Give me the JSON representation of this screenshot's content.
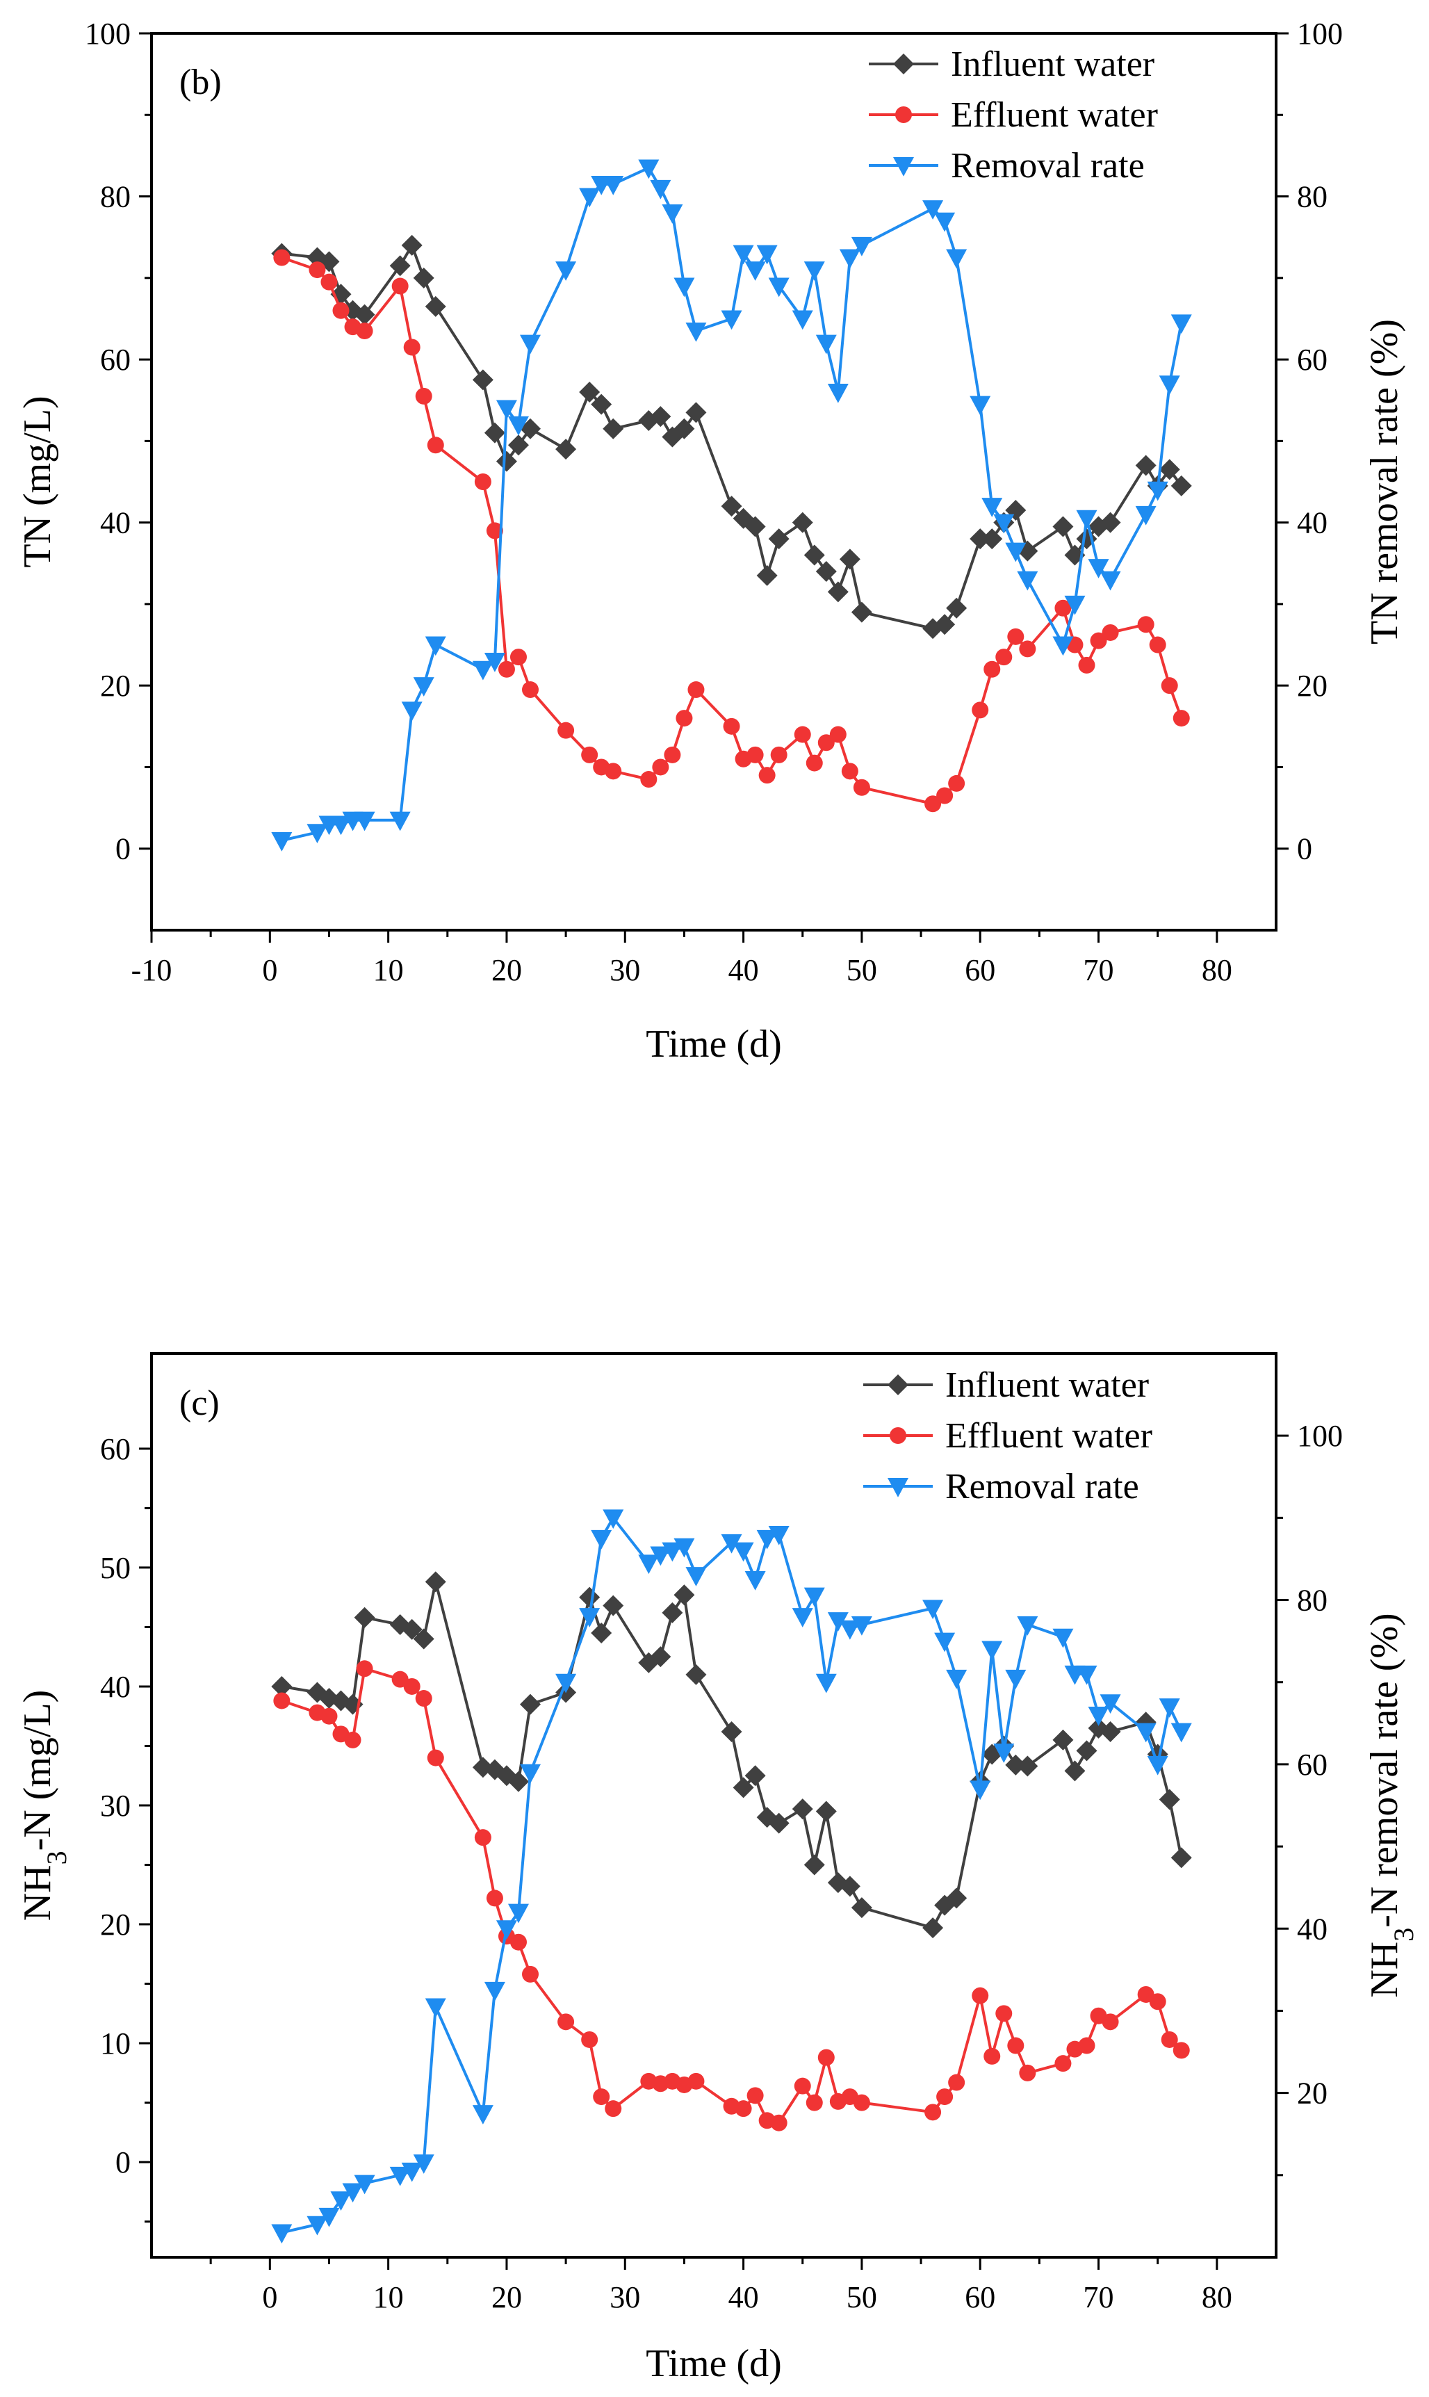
{
  "chart_data": [
    {
      "type": "line",
      "panel_label": "(b)",
      "xlabel": "Time (d)",
      "ylabel": "TN (mg/L)",
      "y2label": "TN removal rate (%)",
      "xlim": [
        -10,
        85
      ],
      "ylim": [
        -10,
        100
      ],
      "y2lim": [
        -10,
        100
      ],
      "xticks": [
        -10,
        0,
        10,
        20,
        30,
        40,
        50,
        60,
        70,
        80
      ],
      "xtick_labels": [
        "-10",
        "0",
        "10",
        "20",
        "30",
        "40",
        "50",
        "60",
        "70",
        "80"
      ],
      "yticks": [
        0,
        20,
        40,
        60,
        80,
        100
      ],
      "ytick_labels": [
        "0",
        "20",
        "40",
        "60",
        "80",
        "100"
      ],
      "y2ticks": [
        0,
        20,
        40,
        60,
        80,
        100
      ],
      "y2tick_labels": [
        "0",
        "20",
        "40",
        "60",
        "80",
        "100"
      ],
      "legend_position": "top-right",
      "series": [
        {
          "name": "Influent water",
          "axis": "left",
          "color": "#404040",
          "marker": "diamond",
          "x": [
            1,
            4,
            5,
            6,
            7,
            8,
            11,
            12,
            13,
            14,
            18,
            19,
            20,
            21,
            22,
            25,
            27,
            28,
            29,
            32,
            33,
            34,
            35,
            36,
            39,
            40,
            41,
            42,
            43,
            45,
            46,
            47,
            48,
            49,
            50,
            56,
            57,
            58,
            60,
            61,
            62,
            63,
            64,
            67,
            68,
            69,
            70,
            71,
            74,
            75,
            76,
            77
          ],
          "y": [
            73,
            72.5,
            72,
            68,
            66,
            65.5,
            71.5,
            74,
            70,
            66.5,
            57.5,
            51,
            47.5,
            49.5,
            51.5,
            49,
            56,
            54.5,
            51.5,
            52.5,
            53,
            50.5,
            51.5,
            53.5,
            42,
            40.5,
            39.5,
            33.5,
            38,
            40,
            36,
            34,
            31.5,
            35.5,
            29,
            27,
            27.5,
            29.5,
            38,
            38,
            40,
            41.5,
            36.5,
            39.5,
            36,
            38,
            39.5,
            40,
            47,
            44.5,
            46.5,
            44.5
          ]
        },
        {
          "name": "Effluent water",
          "axis": "left",
          "color": "#f03434",
          "marker": "circle",
          "x": [
            1,
            4,
            5,
            6,
            7,
            8,
            11,
            12,
            13,
            14,
            18,
            19,
            20,
            21,
            22,
            25,
            27,
            28,
            29,
            32,
            33,
            34,
            35,
            36,
            39,
            40,
            41,
            42,
            43,
            45,
            46,
            47,
            48,
            49,
            50,
            56,
            57,
            58,
            60,
            61,
            62,
            63,
            64,
            67,
            68,
            69,
            70,
            71,
            74,
            75,
            76,
            77
          ],
          "y": [
            72.5,
            71,
            69.5,
            66,
            64,
            63.5,
            69,
            61.5,
            55.5,
            49.5,
            45,
            39,
            22,
            23.5,
            19.5,
            14.5,
            11.5,
            10,
            9.5,
            8.5,
            10,
            11.5,
            16,
            19.5,
            15,
            11,
            11.5,
            9,
            11.5,
            14,
            10.5,
            13,
            14,
            9.5,
            7.5,
            5.5,
            6.5,
            8,
            17,
            22,
            23.5,
            26,
            24.5,
            29.5,
            25,
            22.5,
            25.5,
            26.5,
            27.5,
            25,
            20,
            16
          ]
        },
        {
          "name": "Removal rate",
          "axis": "right",
          "color": "#1f8cf0",
          "marker": "triangle-down",
          "x": [
            1,
            4,
            5,
            6,
            7,
            8,
            11,
            12,
            13,
            14,
            18,
            19,
            20,
            21,
            22,
            25,
            27,
            28,
            29,
            32,
            33,
            34,
            35,
            36,
            39,
            40,
            41,
            42,
            43,
            45,
            46,
            47,
            48,
            49,
            50,
            56,
            57,
            58,
            60,
            61,
            62,
            63,
            64,
            67,
            68,
            69,
            70,
            71,
            74,
            75,
            76,
            77
          ],
          "y": [
            1,
            2,
            3,
            3,
            3.5,
            3.5,
            3.5,
            17,
            20,
            25,
            22,
            23,
            54,
            52,
            62,
            71,
            80,
            81.5,
            81.5,
            83.5,
            81,
            78,
            69,
            63.5,
            65,
            73,
            71,
            73,
            69,
            65,
            71,
            62,
            56,
            72.5,
            74,
            78.5,
            77,
            72.5,
            54.5,
            42,
            40,
            36.5,
            33,
            25,
            30,
            40.5,
            34.5,
            33,
            41,
            44,
            57,
            64.5
          ]
        }
      ]
    },
    {
      "type": "line",
      "panel_label": "(c)",
      "xlabel": "Time (d)",
      "ylabel_main": "NH",
      "ylabel_sub": "3",
      "ylabel_tail": "-N (mg/L)",
      "y2label_main": "NH",
      "y2label_sub": "3",
      "y2label_tail": "-N removal rate (%)",
      "xlim": [
        -10,
        85
      ],
      "ylim": [
        -8,
        68
      ],
      "y2lim": [
        0,
        110
      ],
      "xticks": [
        0,
        10,
        20,
        30,
        40,
        50,
        60,
        70,
        80
      ],
      "xtick_labels": [
        "0",
        "10",
        "20",
        "30",
        "40",
        "50",
        "60",
        "70",
        "80"
      ],
      "yticks": [
        0,
        10,
        20,
        30,
        40,
        50,
        60
      ],
      "ytick_labels": [
        "0",
        "10",
        "20",
        "30",
        "40",
        "50",
        "60"
      ],
      "y2ticks": [
        20,
        40,
        60,
        80,
        100
      ],
      "y2tick_labels": [
        "20",
        "40",
        "60",
        "80",
        "100"
      ],
      "legend_position": "top-right",
      "series": [
        {
          "name": "Influent water",
          "axis": "left",
          "color": "#404040",
          "marker": "diamond",
          "x": [
            1,
            4,
            5,
            6,
            7,
            8,
            11,
            12,
            13,
            14,
            18,
            19,
            20,
            21,
            22,
            25,
            27,
            28,
            29,
            32,
            33,
            34,
            35,
            36,
            39,
            40,
            41,
            42,
            43,
            45,
            46,
            47,
            48,
            49,
            50,
            56,
            57,
            58,
            60,
            61,
            62,
            63,
            64,
            67,
            68,
            69,
            70,
            71,
            74,
            75,
            76,
            77
          ],
          "y": [
            40,
            39.5,
            39,
            38.8,
            38.5,
            45.8,
            45.2,
            44.8,
            44,
            48.8,
            33.2,
            33,
            32.5,
            32,
            38.5,
            39.5,
            47.5,
            44.5,
            46.8,
            42,
            42.5,
            46.2,
            47.7,
            41,
            36.2,
            31.5,
            32.5,
            29,
            28.5,
            29.7,
            25,
            29.5,
            23.5,
            23.2,
            21.4,
            19.7,
            21.6,
            22.2,
            32,
            34.3,
            35,
            33.4,
            33.3,
            35.5,
            32.9,
            34.6,
            36.5,
            36.2,
            37,
            34.3,
            30.5,
            25.6
          ]
        },
        {
          "name": "Effluent water",
          "axis": "left",
          "color": "#f03434",
          "marker": "circle",
          "x": [
            1,
            4,
            5,
            6,
            7,
            8,
            11,
            12,
            13,
            14,
            18,
            19,
            20,
            21,
            22,
            25,
            27,
            28,
            29,
            32,
            33,
            34,
            35,
            36,
            39,
            40,
            41,
            42,
            43,
            45,
            46,
            47,
            48,
            49,
            50,
            56,
            57,
            58,
            60,
            61,
            62,
            63,
            64,
            67,
            68,
            69,
            70,
            71,
            74,
            75,
            76,
            77
          ],
          "y": [
            38.8,
            37.8,
            37.5,
            36,
            35.5,
            41.5,
            40.6,
            40,
            39,
            34,
            27.3,
            22.2,
            19,
            18.5,
            15.8,
            11.8,
            10.3,
            5.5,
            4.5,
            6.8,
            6.6,
            6.8,
            6.5,
            6.8,
            4.7,
            4.5,
            5.6,
            3.5,
            3.3,
            6.4,
            5,
            8.8,
            5.1,
            5.5,
            5,
            4.2,
            5.5,
            6.7,
            14,
            8.9,
            12.5,
            9.8,
            7.5,
            8.3,
            9.5,
            9.8,
            12.3,
            11.8,
            14.1,
            13.5,
            10.3,
            9.4
          ]
        },
        {
          "name": "Removal rate",
          "axis": "right",
          "color": "#1f8cf0",
          "marker": "triangle-down",
          "x": [
            1,
            4,
            5,
            6,
            7,
            8,
            11,
            12,
            13,
            14,
            18,
            19,
            20,
            21,
            22,
            25,
            27,
            28,
            29,
            32,
            33,
            34,
            35,
            36,
            39,
            40,
            41,
            42,
            43,
            45,
            46,
            47,
            48,
            49,
            50,
            56,
            57,
            58,
            60,
            61,
            62,
            63,
            64,
            67,
            68,
            69,
            70,
            71,
            74,
            75,
            76,
            77
          ],
          "y": [
            3,
            4,
            5,
            7,
            8,
            9,
            10,
            10.5,
            11.5,
            30.5,
            17.5,
            32.5,
            40,
            42,
            59,
            70,
            78,
            87.5,
            90,
            84.5,
            85.5,
            86,
            86.5,
            83,
            87,
            86,
            82.5,
            87.5,
            88,
            78,
            80.5,
            70,
            77.5,
            76.5,
            77,
            79,
            75,
            70.5,
            57,
            74,
            61.5,
            70.5,
            77,
            75.5,
            71,
            71,
            66,
            67.5,
            64,
            60,
            67,
            64
          ]
        }
      ]
    }
  ]
}
